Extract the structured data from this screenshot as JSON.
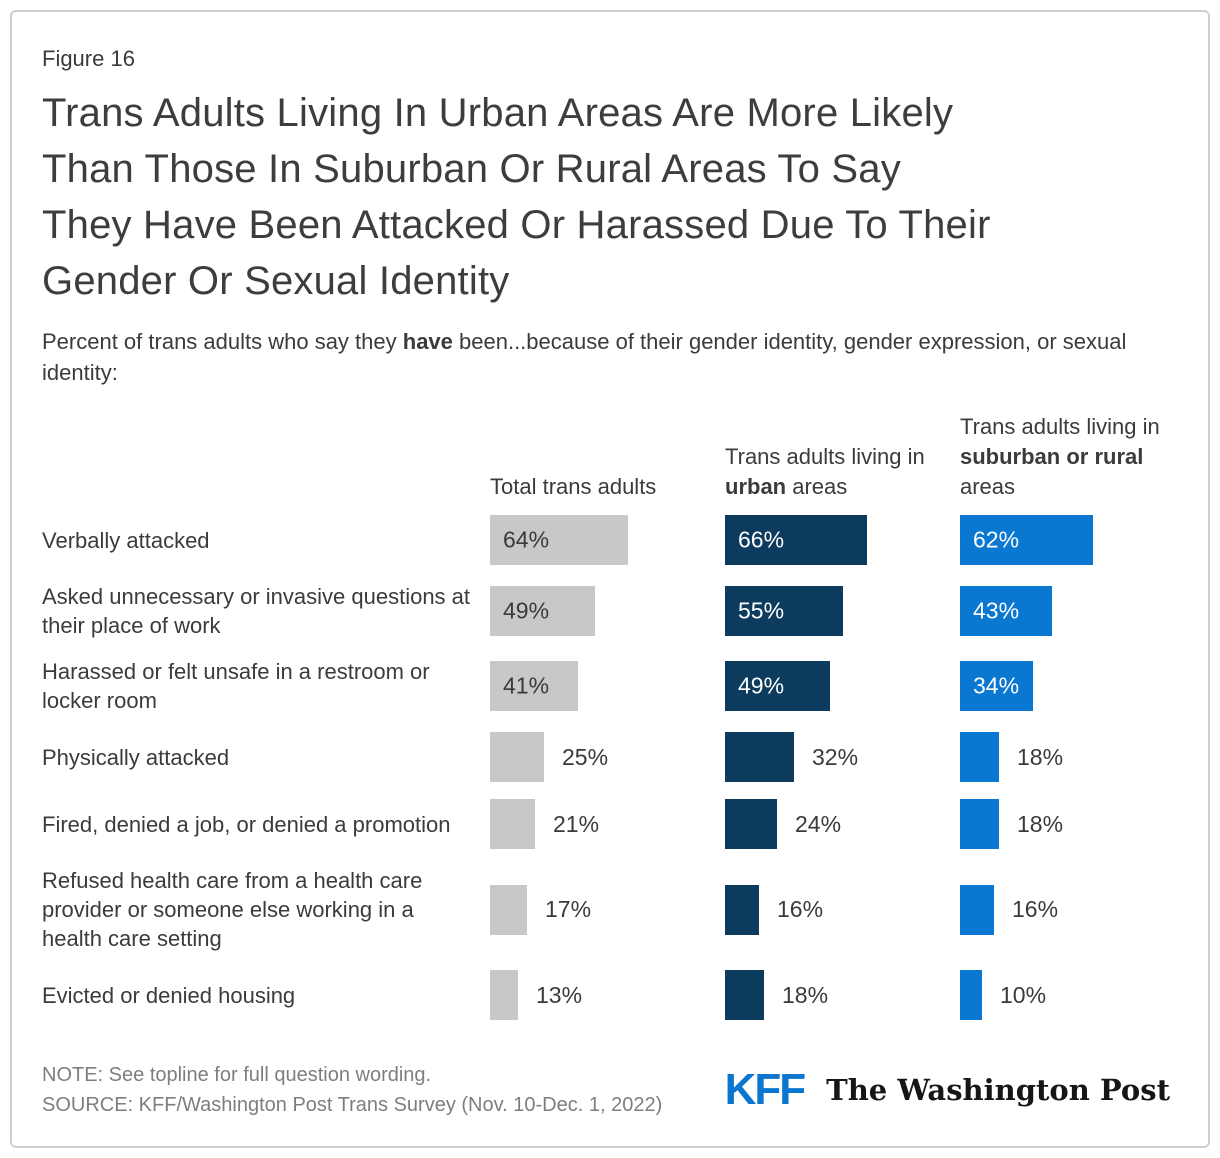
{
  "figure_label": "Figure 16",
  "title": "Trans Adults Living In Urban Areas Are More Likely Than Those In Suburban Or Rural Areas To Say They Have Been Attacked Or Harassed Due To Their Gender Or Sexual Identity",
  "title_lines": [
    "Trans Adults Living In Urban Areas Are More Likely",
    "Than Those In Suburban Or Rural Areas To Say",
    "They Have Been Attacked Or Harassed Due To Their",
    "Gender Or Sexual Identity"
  ],
  "subtitle": {
    "prefix": "Percent of trans adults who say they ",
    "bold": "have",
    "suffix": " been...because of their gender identity, gender expression, or sexual identity:"
  },
  "column_headers": [
    {
      "prefix": "Total trans adults",
      "bold": "",
      "suffix": ""
    },
    {
      "prefix": "Trans adults living in ",
      "bold": "urban",
      "suffix": " areas"
    },
    {
      "prefix": "Trans adults living in ",
      "bold": "suburban or rural",
      "suffix": " areas"
    }
  ],
  "colors": {
    "total_bar": "#c8c8c8",
    "urban_bar": "#0c3b5e",
    "suburban_rural_bar": "#0a77d0",
    "value_text_dark": "#3a3a3a",
    "value_text_light": "#ffffff",
    "kff_blue": "#0b76d0"
  },
  "chart_data": {
    "type": "bar",
    "orientation": "horizontal",
    "title": "Trans Adults Living In Urban Areas Are More Likely Than Those In Suburban Or Rural Areas To Say They Have Been Attacked Or Harassed Due To Their Gender Or Sexual Identity",
    "subtitle": "Percent of trans adults who say they have been...because of their gender identity, gender expression, or sexual identity:",
    "unit": "%",
    "xlim": [
      0,
      100
    ],
    "grid": false,
    "legend_position": "column-headers-top",
    "value_labels": "shown on every bar, inside bar when value >= 34, otherwise to the right of bar",
    "categories": [
      "Verbally attacked",
      "Asked unnecessary or invasive questions at their place of work",
      "Harassed or felt unsafe in a restroom or locker room",
      "Physically attacked",
      "Fired, denied a job, or denied a promotion",
      "Refused health care from a health care provider or someone else working in a health care setting",
      "Evicted or denied housing"
    ],
    "series": [
      {
        "name": "Total trans adults",
        "color": "#c8c8c8",
        "inside_label_color": "#3a3a3a",
        "values": [
          64,
          49,
          41,
          25,
          21,
          17,
          13
        ]
      },
      {
        "name": "Trans adults living in urban areas",
        "color": "#0c3b5e",
        "inside_label_color": "#ffffff",
        "values": [
          66,
          55,
          49,
          32,
          24,
          16,
          18
        ]
      },
      {
        "name": "Trans adults living in suburban or rural areas",
        "color": "#0a77d0",
        "inside_label_color": "#ffffff",
        "values": [
          62,
          43,
          34,
          18,
          18,
          16,
          10
        ]
      }
    ]
  },
  "footer": {
    "note": "NOTE: See topline for full question wording.",
    "source": "SOURCE: KFF/Washington Post Trans Survey (Nov. 10-Dec. 1, 2022)",
    "kff_logo": "KFF",
    "wapo_logo": "The Washington Post"
  }
}
